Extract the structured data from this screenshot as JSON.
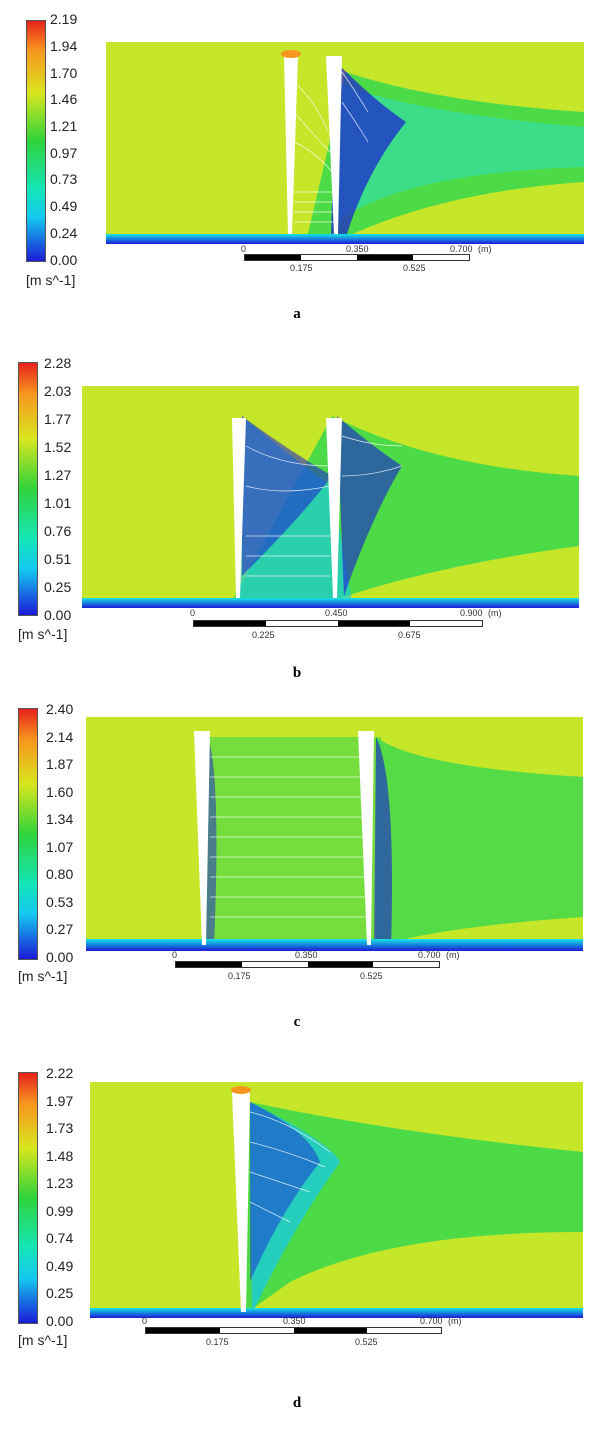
{
  "figure": {
    "panels": [
      {
        "id": "a",
        "letter": "a",
        "unit": "[m s^-1]",
        "ticks": [
          "2.19",
          "1.94",
          "1.70",
          "1.46",
          "1.21",
          "0.97",
          "0.73",
          "0.49",
          "0.24",
          "0.00"
        ],
        "scale_top": [
          "0",
          "0.350",
          "0.700",
          "(m)"
        ],
        "scale_bottom": [
          "0.175",
          "0.525"
        ]
      },
      {
        "id": "b",
        "letter": "b",
        "unit": "[m s^-1]",
        "ticks": [
          "2.28",
          "2.03",
          "1.77",
          "1.52",
          "1.27",
          "1.01",
          "0.76",
          "0.51",
          "0.25",
          "0.00"
        ],
        "scale_top": [
          "0",
          "0.450",
          "0.900",
          "(m)"
        ],
        "scale_bottom": [
          "0.225",
          "0.675"
        ]
      },
      {
        "id": "c",
        "letter": "c",
        "unit": "[m s^-1]",
        "ticks": [
          "2.40",
          "2.14",
          "1.87",
          "1.60",
          "1.34",
          "1.07",
          "0.80",
          "0.53",
          "0.27",
          "0.00"
        ],
        "scale_top": [
          "0",
          "0.350",
          "0.700",
          "(m)"
        ],
        "scale_bottom": [
          "0.175",
          "0.525"
        ]
      },
      {
        "id": "d",
        "letter": "d",
        "unit": "[m s^-1]",
        "ticks": [
          "2.22",
          "1.97",
          "1.73",
          "1.48",
          "1.23",
          "0.99",
          "0.74",
          "0.49",
          "0.25",
          "0.00"
        ],
        "scale_top": [
          "0",
          "0.350",
          "0.700",
          "(m)"
        ],
        "scale_bottom": [
          "0.175",
          "0.525"
        ]
      }
    ],
    "colors": {
      "jet_top": "#e8211b",
      "jet_orange": "#f7951e",
      "jet_yellow": "#d9e61e",
      "jet_green": "#2fd33b",
      "jet_cyan": "#14e6e6",
      "jet_blue": "#1b1bd6",
      "field_bg": "#c6e62a",
      "wake": "#3fd84a"
    }
  }
}
